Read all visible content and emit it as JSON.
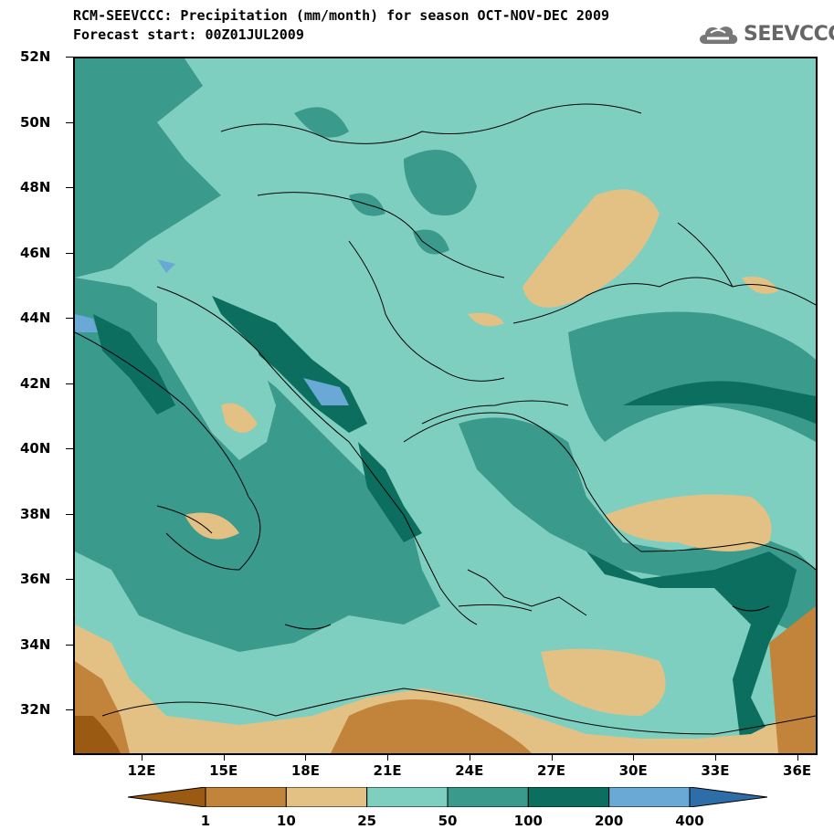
{
  "header": {
    "title_line1": "RCM-SEEVCCC: Precipitation (mm/month) for season OCT-NOV-DEC 2009",
    "title_line2": "Forecast start: 00Z01JUL2009",
    "logo_text": "SEEVCCC"
  },
  "map": {
    "region": "South-East Europe and Eastern Mediterranean",
    "lat_labels": [
      "52N",
      "50N",
      "48N",
      "46N",
      "44N",
      "42N",
      "40N",
      "38N",
      "36N",
      "34N",
      "32N"
    ],
    "lon_labels": [
      "12E",
      "15E",
      "18E",
      "21E",
      "24E",
      "27E",
      "30E",
      "33E",
      "36E"
    ]
  },
  "legend": {
    "boundaries": [
      "1",
      "10",
      "25",
      "50",
      "100",
      "200",
      "400"
    ],
    "colors": [
      "#9b5a12",
      "#c2843a",
      "#e3c184",
      "#7fcfc0",
      "#3a9a8c",
      "#0b6e5e",
      "#6aa9d6",
      "#2e6ea8"
    ]
  }
}
